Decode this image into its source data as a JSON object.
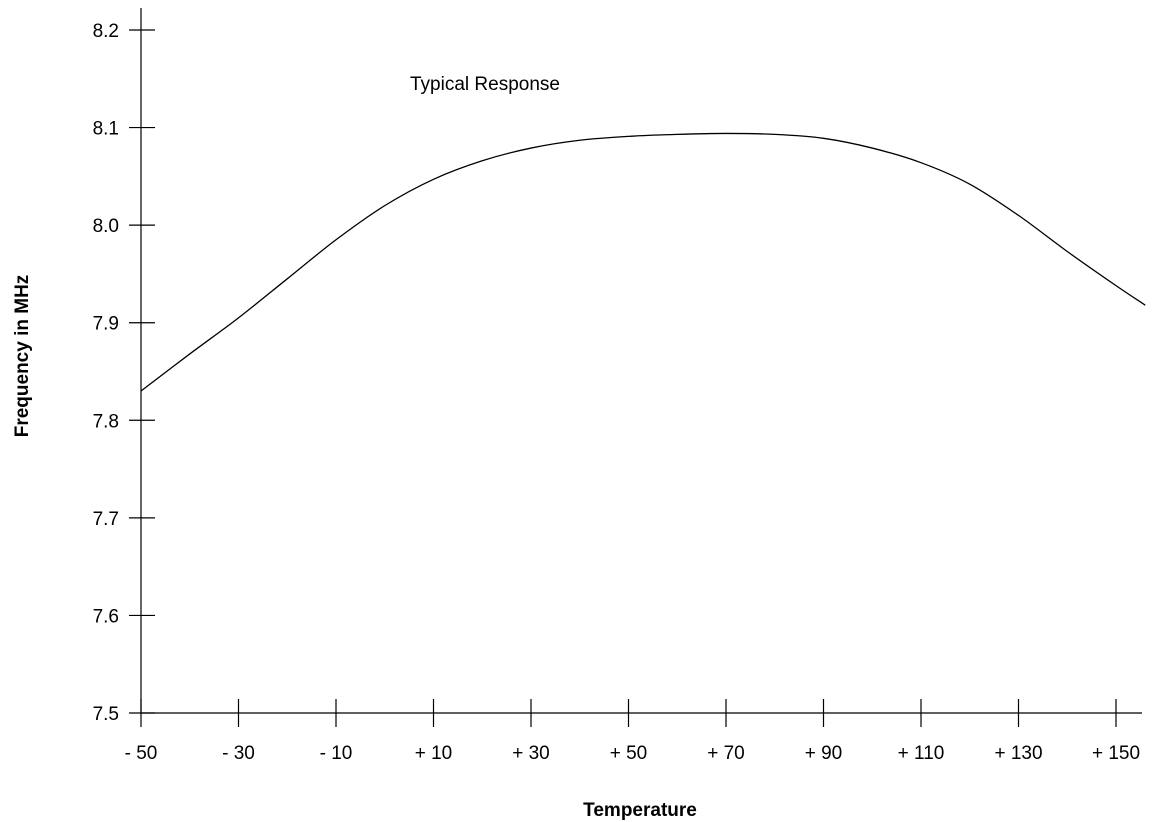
{
  "chart_data": {
    "type": "line",
    "title": "",
    "annotation": "Typical Response",
    "xlabel": "Temperature",
    "ylabel": "Frequency in MHz",
    "x_ticks": [
      -50,
      -30,
      -10,
      10,
      30,
      50,
      70,
      90,
      110,
      130,
      150
    ],
    "x_tick_labels": [
      "- 50",
      "- 30",
      "- 10",
      "+ 10",
      "+ 30",
      "+ 50",
      "+ 70",
      "+ 90",
      "+ 110",
      "+ 130",
      "+ 150"
    ],
    "y_ticks": [
      7.5,
      7.6,
      7.7,
      7.8,
      7.9,
      8.0,
      8.1,
      8.2
    ],
    "y_tick_labels": [
      "7.5",
      "7.6",
      "7.7",
      "7.8",
      "7.9",
      "8.0",
      "8.1",
      "8.2"
    ],
    "xlim": [
      -50,
      156
    ],
    "ylim": [
      7.5,
      8.2
    ],
    "grid": false,
    "series": [
      {
        "color": "#000000",
        "x": [
          -50,
          -40,
          -30,
          -20,
          -10,
          0,
          10,
          20,
          30,
          40,
          50,
          60,
          70,
          80,
          90,
          100,
          110,
          120,
          130,
          140,
          150,
          156
        ],
        "y": [
          7.83,
          7.868,
          7.905,
          7.945,
          7.985,
          8.02,
          8.047,
          8.066,
          8.079,
          8.087,
          8.091,
          8.093,
          8.094,
          8.093,
          8.089,
          8.079,
          8.064,
          8.042,
          8.01,
          7.973,
          7.938,
          7.918
        ]
      }
    ]
  }
}
